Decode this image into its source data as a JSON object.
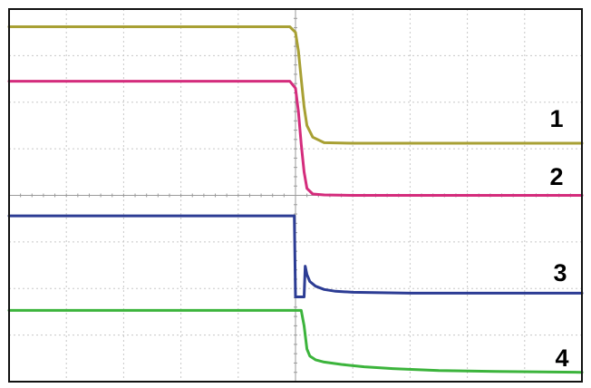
{
  "chart_data": {
    "type": "line",
    "title": "",
    "xlabel": "",
    "ylabel": "",
    "grid": true,
    "grid_divisions": {
      "x": 10,
      "y": 8
    },
    "xlim": [
      0,
      10
    ],
    "ylim": [
      0,
      8
    ],
    "series": [
      {
        "name": "1",
        "color": "#a8a034",
        "x": [
          0,
          4.9,
          5.0,
          5.05,
          5.1,
          5.15,
          5.2,
          5.3,
          5.5,
          6.0,
          7.0,
          8.0,
          9.0,
          10.0
        ],
        "y": [
          7.62,
          7.62,
          7.5,
          7.1,
          6.5,
          5.9,
          5.5,
          5.25,
          5.13,
          5.12,
          5.12,
          5.12,
          5.12,
          5.12
        ]
      },
      {
        "name": "2",
        "color": "#d42c7c",
        "x": [
          0,
          4.9,
          5.0,
          5.05,
          5.1,
          5.15,
          5.2,
          5.3,
          5.5,
          6.0,
          7.0,
          8.0,
          9.0,
          10.0
        ],
        "y": [
          6.45,
          6.45,
          6.3,
          5.8,
          5.1,
          4.5,
          4.15,
          4.03,
          4.01,
          4.0,
          4.0,
          4.0,
          4.0,
          4.0
        ]
      },
      {
        "name": "3",
        "color": "#2c3c94",
        "x": [
          0,
          4.98,
          5.0,
          5.15,
          5.17,
          5.2,
          5.25,
          5.35,
          5.5,
          5.7,
          6.0,
          6.5,
          7.0,
          8.0,
          9.0,
          10.0
        ],
        "y": [
          3.56,
          3.56,
          1.82,
          1.82,
          2.48,
          2.3,
          2.15,
          2.05,
          1.98,
          1.94,
          1.92,
          1.91,
          1.9,
          1.9,
          1.9,
          1.9
        ]
      },
      {
        "name": "4",
        "color": "#3cb43c",
        "x": [
          0,
          5.1,
          5.15,
          5.2,
          5.25,
          5.35,
          5.5,
          5.8,
          6.2,
          6.7,
          7.5,
          8.5,
          10.0
        ],
        "y": [
          1.53,
          1.53,
          1.2,
          0.7,
          0.55,
          0.47,
          0.42,
          0.37,
          0.32,
          0.28,
          0.24,
          0.22,
          0.2
        ]
      }
    ]
  }
}
